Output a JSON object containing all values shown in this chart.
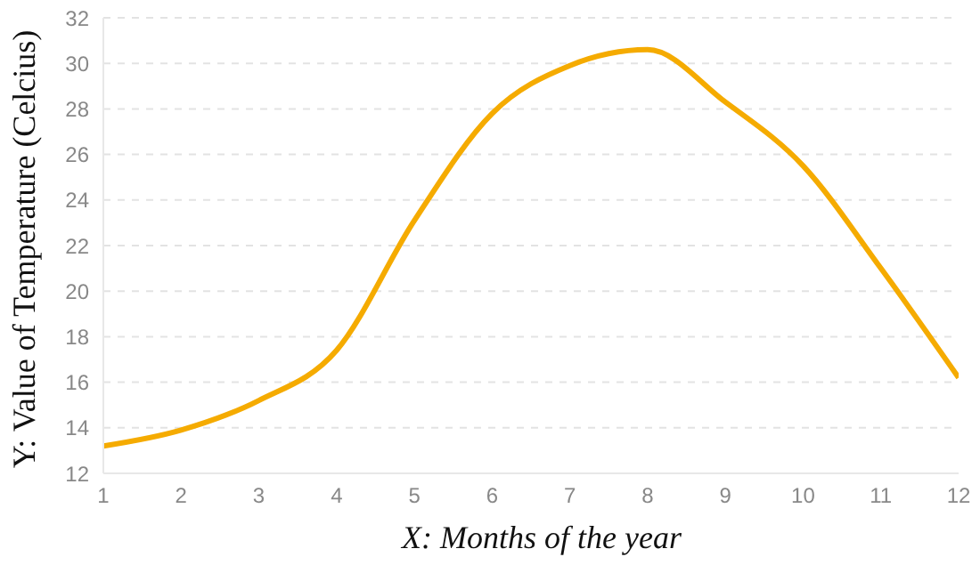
{
  "chart_data": {
    "type": "line",
    "xlabel": "X: Months of the year",
    "ylabel": "Y: Value of Temperature (Celcius)",
    "x": [
      1,
      2,
      3,
      4,
      5,
      6,
      7,
      8,
      9,
      10,
      11,
      12
    ],
    "series": [
      {
        "color": "#f5ab00",
        "values": [
          13.2,
          13.9,
          15.2,
          17.4,
          23.1,
          27.8,
          29.9,
          30.6,
          28.3,
          25.5,
          21.0,
          16.2
        ]
      }
    ],
    "xlim": [
      1,
      12
    ],
    "xticks": [
      1,
      2,
      3,
      4,
      5,
      6,
      7,
      8,
      9,
      10,
      11,
      12
    ],
    "ylim": [
      12,
      32
    ],
    "yticks": [
      12,
      14,
      16,
      18,
      20,
      22,
      24,
      26,
      28,
      30,
      32
    ],
    "grid": "y",
    "legend": false,
    "marker": "none",
    "line_style": "solid"
  }
}
